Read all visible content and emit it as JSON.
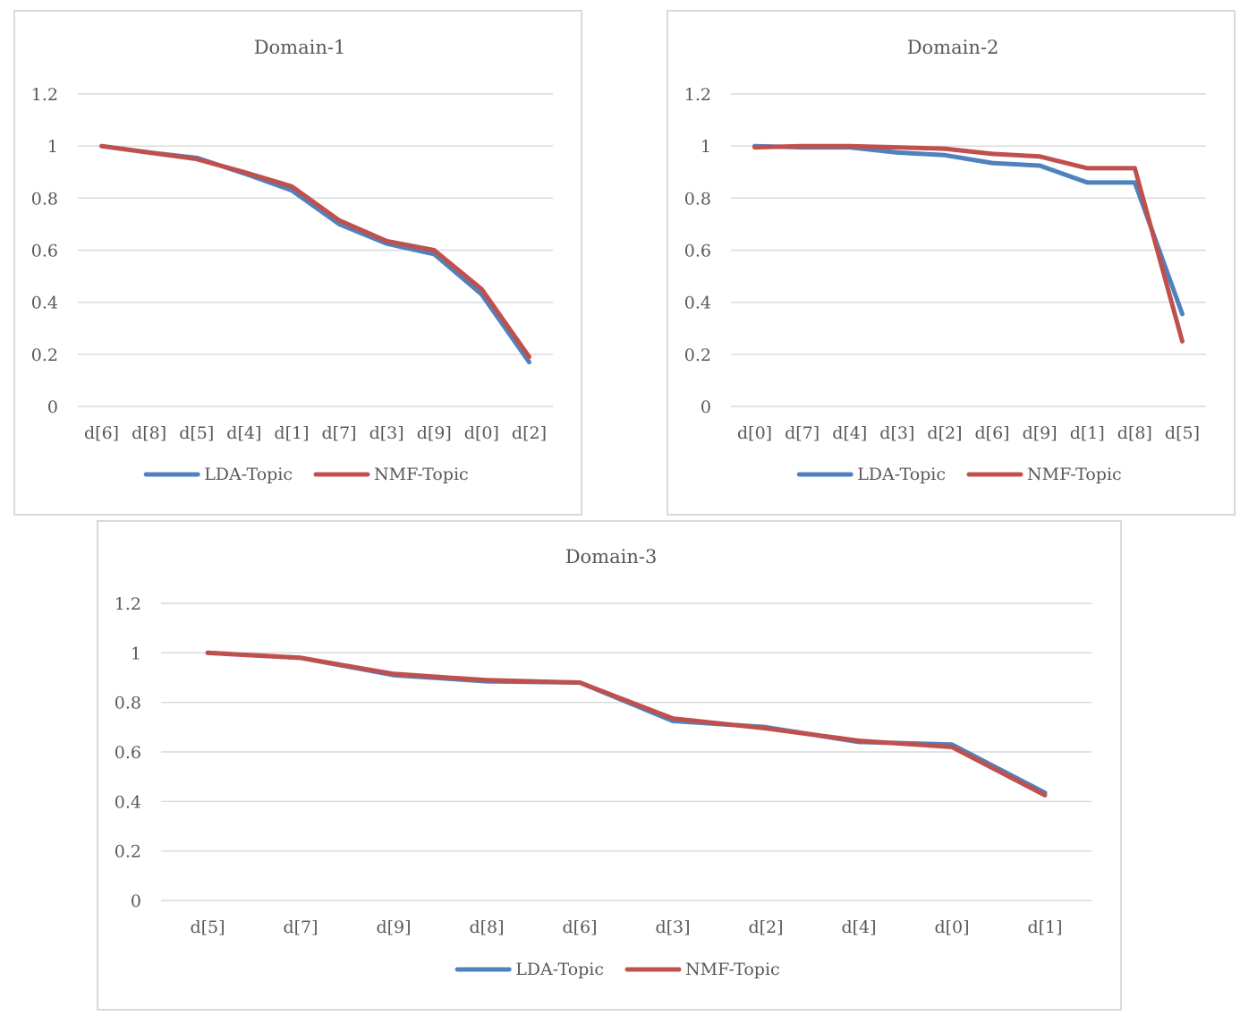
{
  "colors": {
    "lda": "#4f81bd",
    "nmf": "#c0504d",
    "grid": "#d9d9d9",
    "text": "#595959"
  },
  "chart_data": [
    {
      "type": "line",
      "title": "Domain-1",
      "categories": [
        "d[6]",
        "d[8]",
        "d[5]",
        "d[4]",
        "d[1]",
        "d[7]",
        "d[3]",
        "d[9]",
        "d[0]",
        "d[2]"
      ],
      "series": [
        {
          "name": "LDA-Topic",
          "values": [
            1.0,
            0.975,
            0.955,
            0.895,
            0.83,
            0.7,
            0.625,
            0.585,
            0.43,
            0.17
          ]
        },
        {
          "name": "NMF-Topic",
          "values": [
            1.0,
            0.975,
            0.95,
            0.9,
            0.845,
            0.715,
            0.635,
            0.6,
            0.45,
            0.19
          ]
        }
      ],
      "yticks": [
        "0",
        "0.2",
        "0.4",
        "0.6",
        "0.8",
        "1",
        "1.2"
      ],
      "ylim": [
        0,
        1.2
      ],
      "grid": true,
      "legend": "bottom"
    },
    {
      "type": "line",
      "title": "Domain-2",
      "categories": [
        "d[0]",
        "d[7]",
        "d[4]",
        "d[3]",
        "d[2]",
        "d[6]",
        "d[9]",
        "d[1]",
        "d[8]",
        "d[5]"
      ],
      "series": [
        {
          "name": "LDA-Topic",
          "values": [
            1.0,
            0.995,
            0.995,
            0.975,
            0.965,
            0.935,
            0.925,
            0.86,
            0.86,
            0.355
          ]
        },
        {
          "name": "NMF-Topic",
          "values": [
            0.995,
            1.0,
            1.0,
            0.995,
            0.99,
            0.97,
            0.96,
            0.915,
            0.915,
            0.25
          ]
        }
      ],
      "yticks": [
        "0",
        "0.2",
        "0.4",
        "0.6",
        "0.8",
        "1",
        "1.2"
      ],
      "ylim": [
        0,
        1.2
      ],
      "grid": true,
      "legend": "bottom"
    },
    {
      "type": "line",
      "title": "Domain-3",
      "categories": [
        "d[5]",
        "d[7]",
        "d[9]",
        "d[8]",
        "d[6]",
        "d[3]",
        "d[2]",
        "d[4]",
        "d[0]",
        "d[1]"
      ],
      "series": [
        {
          "name": "LDA-Topic",
          "values": [
            1.0,
            0.98,
            0.91,
            0.885,
            0.88,
            0.725,
            0.7,
            0.64,
            0.63,
            0.435
          ]
        },
        {
          "name": "NMF-Topic",
          "values": [
            1.0,
            0.98,
            0.915,
            0.89,
            0.88,
            0.735,
            0.695,
            0.645,
            0.62,
            0.425
          ]
        }
      ],
      "yticks": [
        "0",
        "0.2",
        "0.4",
        "0.6",
        "0.8",
        "1",
        "1.2"
      ],
      "ylim": [
        0,
        1.2
      ],
      "grid": true,
      "legend": "bottom"
    }
  ]
}
